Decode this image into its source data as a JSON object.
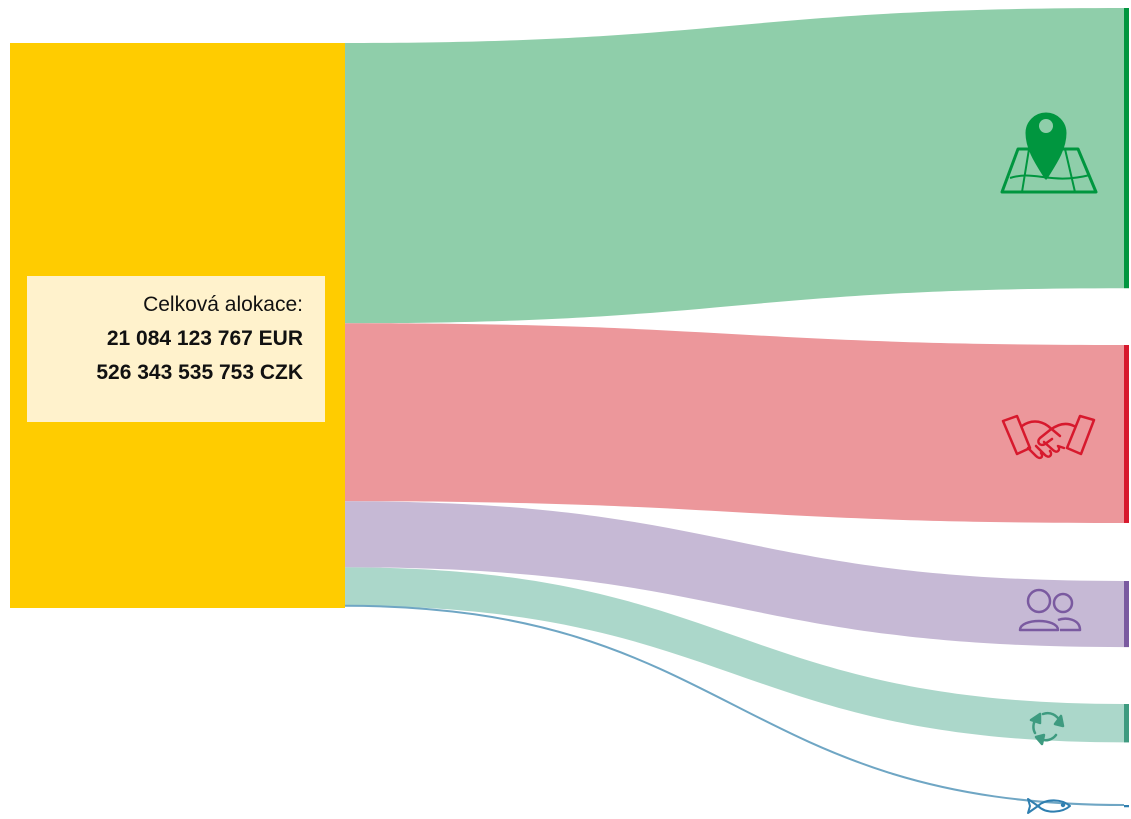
{
  "total": {
    "label": "Celková alokace:",
    "eur": "21 084 123 767 EUR",
    "czk": "526 343 535 753 CZK",
    "color": "#ffcc00"
  },
  "chart_data": {
    "type": "sankey",
    "source": {
      "label": "Celková alokace:",
      "value_eur": 21084123767,
      "value_czk": 526343535753
    },
    "flows": [
      {
        "icon": "map-location-icon",
        "color": "#8fceaa",
        "bar_color": "#00963f",
        "share": 0.496
      },
      {
        "icon": "handshake-icon",
        "color": "#ec979b",
        "bar_color": "#d7192d",
        "share": 0.315
      },
      {
        "icon": "people-icon",
        "color": "#c6b9d5",
        "bar_color": "#7a5aa0",
        "share": 0.117
      },
      {
        "icon": "recycle-icon",
        "color": "#abd7ca",
        "bar_color": "#3e9b80",
        "share": 0.068
      },
      {
        "icon": "fish-icon",
        "color": "#6fa6c4",
        "bar_color": "#2f7fb0",
        "share": 0.004
      }
    ]
  }
}
